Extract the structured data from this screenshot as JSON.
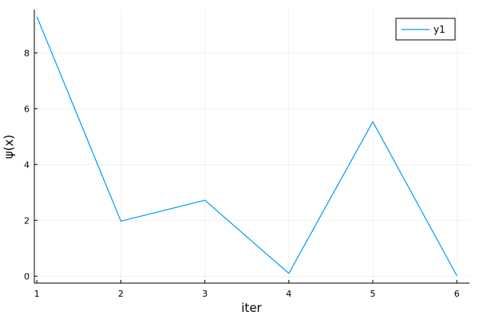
{
  "chart_data": {
    "type": "line",
    "title": "",
    "xlabel": "iter",
    "ylabel": "ψ(x)",
    "xlim": [
      0.97,
      6.15
    ],
    "ylim": [
      -0.25,
      9.55
    ],
    "xticks": [
      1,
      2,
      3,
      4,
      5,
      6
    ],
    "yticks": [
      0,
      2,
      4,
      6,
      8
    ],
    "grid": true,
    "legend_position": "top-right",
    "series": [
      {
        "name": "y1",
        "color": "#009af9",
        "x": [
          1,
          2,
          3,
          4,
          5,
          6
        ],
        "y": [
          9.3,
          1.97,
          2.72,
          0.1,
          5.53,
          0.02
        ]
      }
    ]
  }
}
